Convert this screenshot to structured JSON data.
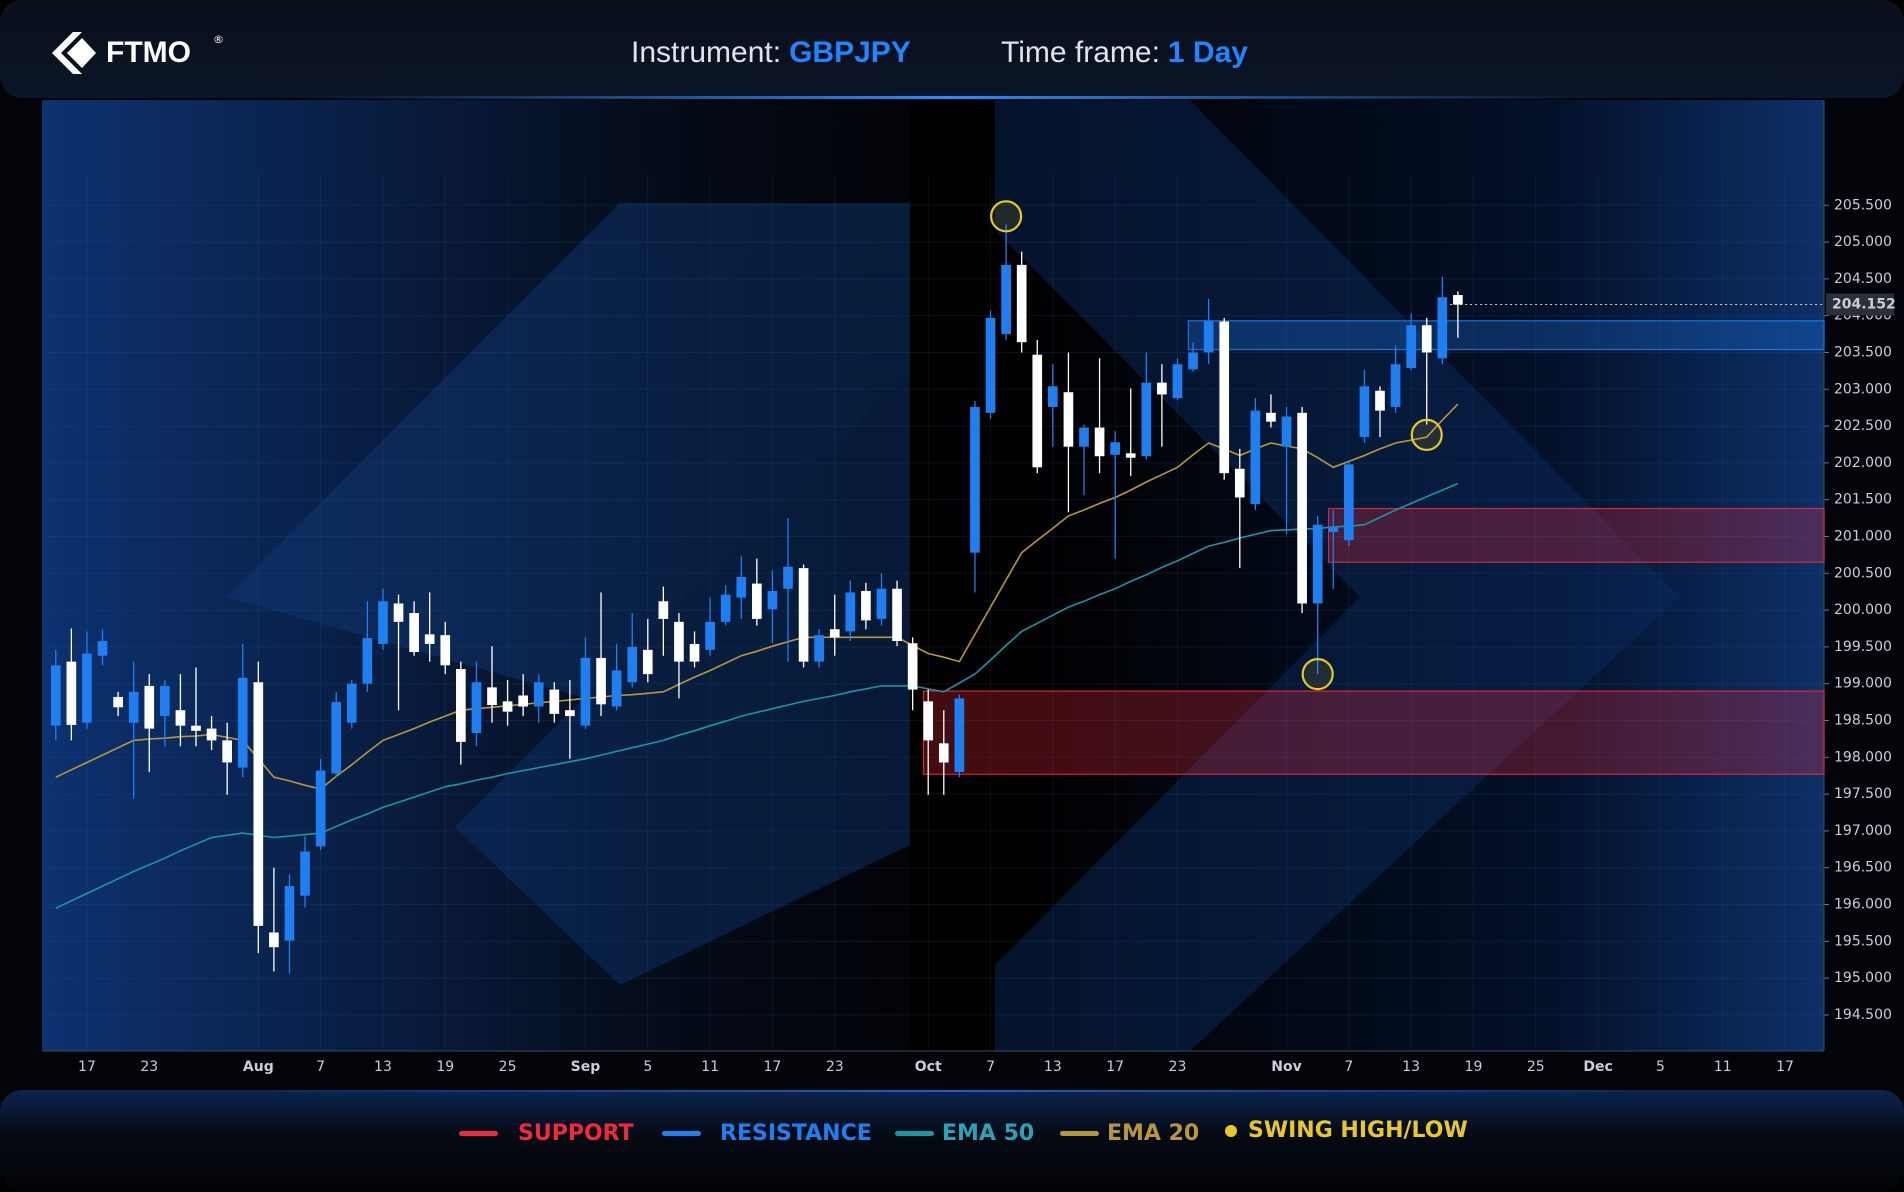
{
  "header": {
    "logo": "FTMO",
    "logo_mark": "®",
    "instrument_label": "Instrument:",
    "instrument": "GBPJPY",
    "timeframe_label": "Time frame:",
    "timeframe": "1 Day"
  },
  "chart_data": {
    "type": "candlestick",
    "categories": [
      null,
      null,
      "17",
      null,
      null,
      null,
      "23",
      null,
      null,
      null,
      null,
      null,
      null,
      "Aug",
      null,
      null,
      null,
      "7",
      null,
      null,
      null,
      "13",
      null,
      null,
      null,
      "19",
      null,
      null,
      null,
      "25",
      null,
      null,
      null,
      null,
      "Sep",
      null,
      null,
      null,
      "5",
      null,
      null,
      null,
      "11",
      null,
      null,
      null,
      "17",
      null,
      null,
      null,
      "23",
      null,
      null,
      null,
      null,
      null,
      "Oct",
      null,
      null,
      null,
      "7",
      null,
      null,
      null,
      "13",
      null,
      null,
      null,
      "17",
      null,
      null,
      null,
      "23",
      null,
      null,
      null,
      null,
      null,
      null,
      "Nov",
      null,
      null,
      null,
      "7",
      null,
      null,
      null,
      "13",
      null,
      null,
      null,
      "19",
      null,
      null,
      null,
      "25",
      null,
      null,
      null,
      "Dec",
      null,
      null,
      null,
      "5",
      null,
      null,
      null,
      "11",
      null,
      null,
      null,
      "17",
      null,
      null
    ],
    "open": [
      198.43,
      199.3,
      198.47,
      199.38,
      198.82,
      198.47,
      198.97,
      198.56,
      198.64,
      198.43,
      198.39,
      198.23,
      197.86,
      199.02,
      195.62,
      195.51,
      196.12,
      196.79,
      197.78,
      198.47,
      199.0,
      199.54,
      200.09,
      199.96,
      199.67,
      199.66,
      199.2,
      198.33,
      198.95,
      198.76,
      198.84,
      198.69,
      198.92,
      198.64,
      198.43,
      199.35,
      198.69,
      199.02,
      199.46,
      200.12,
      199.84,
      199.54,
      199.46,
      199.84,
      200.17,
      200.36,
      200.01,
      200.29,
      200.57,
      199.3,
      199.74,
      199.71,
      200.26,
      199.88,
      200.29,
      199.55,
      198.76,
      198.19,
      197.8,
      200.78,
      202.68,
      203.75,
      204.69,
      203.47,
      202.76,
      202.96,
      202.22,
      202.48,
      202.11,
      202.13,
      202.09,
      203.09,
      202.88,
      203.27,
      203.5,
      203.92,
      201.92,
      201.44,
      202.68,
      202.22,
      202.68,
      200.09,
      201.06,
      200.95,
      202.35,
      202.98,
      202.76,
      203.29,
      203.87,
      203.42,
      204.28,
      null,
      null,
      null,
      null,
      null,
      null,
      null,
      null,
      null,
      null,
      null,
      null,
      null,
      null,
      null,
      null,
      null,
      null,
      null,
      null,
      null,
      null,
      null
    ],
    "high": [
      199.46,
      199.75,
      199.71,
      199.74,
      198.89,
      199.3,
      199.13,
      199.05,
      199.13,
      199.22,
      198.56,
      198.47,
      199.54,
      199.3,
      196.5,
      196.41,
      196.93,
      197.98,
      198.89,
      199.05,
      200.12,
      200.29,
      200.21,
      200.12,
      200.24,
      199.84,
      199.3,
      199.3,
      199.51,
      199.05,
      199.13,
      199.13,
      199.02,
      199.05,
      199.63,
      200.24,
      199.54,
      199.96,
      199.88,
      200.32,
      199.96,
      199.71,
      200.17,
      200.34,
      200.73,
      200.7,
      200.54,
      201.25,
      200.62,
      199.74,
      200.21,
      200.4,
      200.37,
      200.5,
      200.4,
      199.63,
      198.92,
      198.64,
      198.85,
      202.84,
      204.07,
      205.24,
      204.87,
      203.67,
      203.34,
      203.5,
      202.52,
      203.42,
      202.43,
      203.01,
      203.5,
      203.34,
      203.42,
      203.64,
      204.23,
      203.97,
      202.19,
      202.88,
      202.93,
      202.76,
      202.76,
      201.28,
      201.36,
      202.02,
      203.26,
      203.04,
      203.59,
      204.03,
      203.97,
      204.53,
      204.33,
      null,
      null,
      null,
      null,
      null,
      null,
      null,
      null,
      null,
      null,
      null,
      null,
      null,
      null,
      null,
      null,
      null,
      null,
      null,
      null,
      null,
      null,
      null
    ],
    "low": [
      198.23,
      198.23,
      198.39,
      199.25,
      198.56,
      197.44,
      197.8,
      198.15,
      198.15,
      198.15,
      198.1,
      197.49,
      197.73,
      195.34,
      195.09,
      195.06,
      195.96,
      196.74,
      197.73,
      198.39,
      198.89,
      199.46,
      198.64,
      199.38,
      199.3,
      199.13,
      197.9,
      198.15,
      198.47,
      198.43,
      198.56,
      198.47,
      198.47,
      197.98,
      198.39,
      198.56,
      198.64,
      198.95,
      199.02,
      199.38,
      198.8,
      199.22,
      199.38,
      199.79,
      199.88,
      199.79,
      199.55,
      199.3,
      199.22,
      199.22,
      199.38,
      199.58,
      199.74,
      199.79,
      199.51,
      198.64,
      197.49,
      197.49,
      197.73,
      200.24,
      202.6,
      203.67,
      203.5,
      201.86,
      202.22,
      201.33,
      201.56,
      201.86,
      200.7,
      201.82,
      202.05,
      202.22,
      202.85,
      203.24,
      203.34,
      201.77,
      200.57,
      201.36,
      202.48,
      201.03,
      199.96,
      199.13,
      200.29,
      200.87,
      202.27,
      202.35,
      202.68,
      203.26,
      202.52,
      203.34,
      203.7,
      null,
      null,
      null,
      null,
      null,
      null,
      null,
      null,
      null,
      null,
      null,
      null,
      null,
      null,
      null,
      null,
      null,
      null,
      null,
      null,
      null,
      null,
      null
    ],
    "close": [
      199.25,
      198.44,
      199.41,
      199.58,
      198.68,
      198.89,
      198.39,
      198.97,
      198.43,
      198.36,
      198.23,
      197.93,
      199.08,
      195.71,
      195.42,
      196.25,
      196.72,
      197.82,
      198.75,
      199.0,
      199.62,
      200.12,
      199.84,
      199.43,
      199.54,
      199.25,
      198.21,
      199.02,
      198.71,
      198.62,
      198.69,
      199.02,
      198.59,
      198.56,
      199.35,
      198.72,
      199.18,
      199.5,
      199.13,
      199.88,
      199.3,
      199.3,
      199.84,
      200.21,
      200.45,
      199.88,
      200.26,
      200.59,
      199.3,
      199.66,
      199.63,
      200.24,
      199.86,
      200.29,
      199.58,
      198.92,
      198.23,
      197.93,
      198.8,
      202.76,
      203.97,
      204.69,
      203.64,
      201.94,
      203.04,
      202.22,
      202.48,
      202.09,
      202.28,
      202.07,
      203.09,
      202.93,
      203.34,
      203.5,
      203.93,
      201.86,
      201.53,
      202.71,
      202.56,
      202.63,
      200.09,
      201.16,
      201.13,
      201.98,
      203.04,
      202.71,
      203.34,
      203.87,
      203.5,
      204.25,
      204.15,
      null,
      null,
      null,
      null,
      null,
      null,
      null,
      null,
      null,
      null,
      null,
      null,
      null,
      null,
      null,
      null,
      null,
      null,
      null,
      null,
      null,
      null,
      null
    ],
    "up_color": "#1f7ff0",
    "down_color": "#ffffff",
    "series": [
      {
        "name": "EMA 50",
        "color": "#1c95a6",
        "text_color": "#2aa3b5",
        "values": [
          195.95,
          196.05,
          196.15,
          196.25,
          196.35,
          196.45,
          196.54,
          196.63,
          196.73,
          196.82,
          196.91,
          196.94,
          196.97,
          196.94,
          196.91,
          196.93,
          196.95,
          196.97,
          197.06,
          197.15,
          197.23,
          197.32,
          197.39,
          197.46,
          197.53,
          197.6,
          197.64,
          197.69,
          197.73,
          197.78,
          197.82,
          197.86,
          197.9,
          197.94,
          197.98,
          198.03,
          198.08,
          198.13,
          198.18,
          198.23,
          198.3,
          198.36,
          198.43,
          198.49,
          198.56,
          198.61,
          198.66,
          198.71,
          198.76,
          198.8,
          198.84,
          198.89,
          198.93,
          198.97,
          198.97,
          198.97,
          198.93,
          198.89,
          199.01,
          199.13,
          199.32,
          199.52,
          199.71,
          199.82,
          199.93,
          200.04,
          200.12,
          200.21,
          200.29,
          200.39,
          200.48,
          200.58,
          200.67,
          200.77,
          200.87,
          200.92,
          200.98,
          201.03,
          201.08,
          201.09,
          201.1,
          201.11,
          201.13,
          201.14,
          201.16,
          201.26,
          201.36,
          201.45,
          201.54,
          201.63,
          201.72,
          null,
          null,
          null,
          null,
          null,
          null,
          null,
          null,
          null,
          null,
          null,
          null,
          null,
          null,
          null,
          null,
          null,
          null,
          null,
          null,
          null,
          null,
          null
        ]
      },
      {
        "name": "EMA 20",
        "color": "#b8963a",
        "text_color": "#b8963a",
        "values": [
          197.73,
          197.83,
          197.93,
          198.03,
          198.13,
          198.23,
          198.25,
          198.26,
          198.28,
          198.29,
          198.31,
          198.27,
          198.23,
          197.98,
          197.73,
          197.68,
          197.62,
          197.57,
          197.74,
          197.9,
          198.07,
          198.23,
          198.31,
          198.39,
          198.48,
          198.56,
          198.64,
          198.66,
          198.68,
          198.7,
          198.72,
          198.74,
          198.76,
          198.78,
          198.8,
          198.82,
          198.84,
          198.85,
          198.87,
          198.89,
          198.99,
          199.09,
          199.18,
          199.28,
          199.38,
          199.44,
          199.51,
          199.57,
          199.63,
          199.63,
          199.63,
          199.63,
          199.63,
          199.63,
          199.63,
          199.52,
          199.41,
          199.36,
          199.3,
          199.67,
          200.04,
          200.41,
          200.78,
          200.95,
          201.11,
          201.28,
          201.36,
          201.45,
          201.53,
          201.63,
          201.74,
          201.84,
          201.94,
          202.11,
          202.27,
          202.19,
          202.1,
          202.19,
          202.27,
          202.23,
          202.19,
          202.07,
          201.94,
          202.02,
          202.1,
          202.19,
          202.27,
          202.31,
          202.35,
          202.58,
          202.8,
          null,
          null,
          null,
          null,
          null,
          null,
          null,
          null,
          null,
          null,
          null,
          null,
          null,
          null,
          null,
          null,
          null,
          null,
          null,
          null,
          null,
          null,
          null
        ]
      }
    ],
    "support": {
      "name": "SUPPORT",
      "color": "#ee2a3c",
      "zones": [
        {
          "start": 56,
          "top": 198.9,
          "bottom": 197.77
        },
        {
          "start": 82,
          "top": 201.38,
          "bottom": 200.65
        }
      ]
    },
    "resistance": {
      "name": "RESISTANCE",
      "color": "#1f7ff0",
      "zones": [
        {
          "start": 73,
          "top": 203.93,
          "bottom": 203.54
        }
      ]
    },
    "swings": {
      "name": "SWING HIGH/LOW",
      "color": "#e9c825",
      "points": [
        {
          "index": 61,
          "value": 205.35
        },
        {
          "index": 81,
          "value": 199.13
        },
        {
          "index": 88,
          "value": 202.38
        }
      ]
    },
    "last_price": 204.152,
    "ylim": [
      194.01,
      206.93
    ],
    "yticks": [
      {
        "value": 194.5,
        "label": "194.500"
      },
      {
        "value": 195,
        "label": "195.000"
      },
      {
        "value": 195.5,
        "label": "195.500"
      },
      {
        "value": 196,
        "label": "196.000"
      },
      {
        "value": 196.5,
        "label": "196.500"
      },
      {
        "value": 197,
        "label": "197.000"
      },
      {
        "value": 197.5,
        "label": "197.500"
      },
      {
        "value": 198,
        "label": "198.000"
      },
      {
        "value": 198.5,
        "label": "198.500"
      },
      {
        "value": 199,
        "label": "199.000"
      },
      {
        "value": 199.5,
        "label": "199.500"
      },
      {
        "value": 200,
        "label": "200.000"
      },
      {
        "value": 200.5,
        "label": "200.500"
      },
      {
        "value": 201,
        "label": "201.000"
      },
      {
        "value": 201.5,
        "label": "201.500"
      },
      {
        "value": 202,
        "label": "202.000"
      },
      {
        "value": 202.5,
        "label": "202.500"
      },
      {
        "value": 203,
        "label": "203.000"
      },
      {
        "value": 203.5,
        "label": "203.500"
      },
      {
        "value": 204,
        "label": "204.000"
      },
      {
        "value": 204.5,
        "label": "204.500"
      },
      {
        "value": 205,
        "label": "205.000"
      },
      {
        "value": 205.5,
        "label": "205.500"
      }
    ],
    "grid": true
  }
}
